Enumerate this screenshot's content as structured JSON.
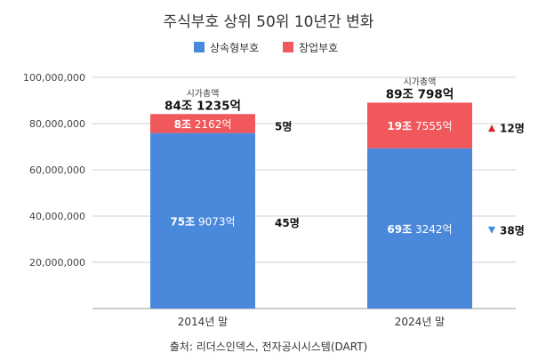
{
  "chart_data": {
    "type": "bar",
    "stacked": true,
    "title": "주식부호 상위 50위 10년간 변화",
    "categories": [
      "2014년 말",
      "2024년 말"
    ],
    "series": [
      {
        "name": "상속형부호",
        "values": [
          75907300,
          69324200
        ],
        "color": "#4a88dc",
        "labels": [
          {
            "bold": "75조",
            "rest": " 9073억"
          },
          {
            "bold": "69조",
            "rest": " 3242억"
          }
        ]
      },
      {
        "name": "창업부호",
        "values": [
          8216200,
          19755500
        ],
        "color": "#f0585c",
        "labels": [
          {
            "bold": "8조",
            "rest": " 2162억"
          },
          {
            "bold": "19조",
            "rest": " 7555억"
          }
        ]
      }
    ],
    "totals": [
      "84조 1235억",
      "89조 798억"
    ],
    "total_caption": "시가총액",
    "ylim": [
      0,
      100000000
    ],
    "yticks": [
      "20,000,000",
      "40,000,000",
      "60,000,000",
      "80,000,000",
      "100,000,000"
    ],
    "ytick_values": [
      20000000,
      40000000,
      60000000,
      80000000,
      100000000
    ],
    "grid": true,
    "legend_position": "top",
    "counts": [
      {
        "inherited": "45명",
        "founder": "5명",
        "inherited_trend": "",
        "founder_trend": ""
      },
      {
        "inherited": "38명",
        "founder": "12명",
        "inherited_trend": "down",
        "founder_trend": "up"
      }
    ],
    "trend_colors": {
      "up": "#d9232a",
      "down": "#3b8ee0"
    },
    "source": "출처: 리더스인덱스, 전자공시시스템(DART)"
  }
}
